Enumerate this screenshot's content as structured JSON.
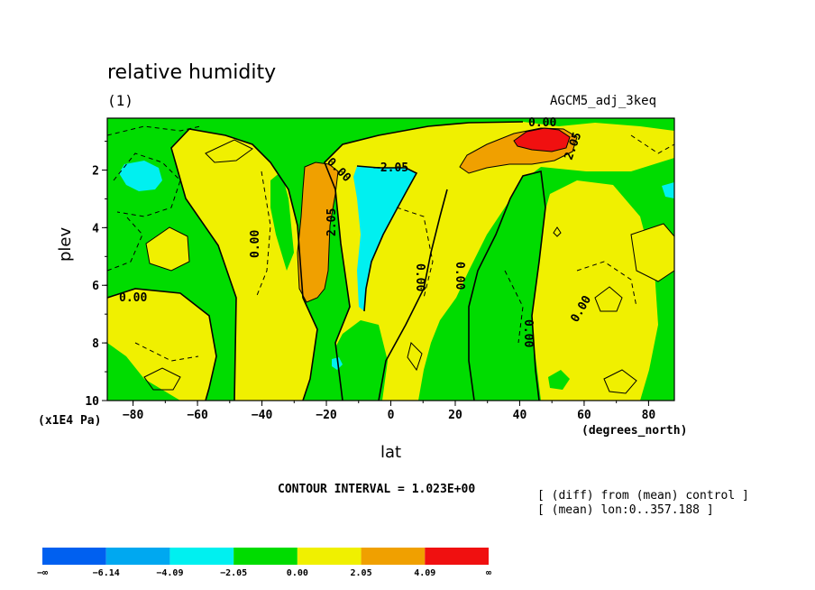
{
  "title": "relative humidity",
  "subtitle": "(1)",
  "model": "AGCM5_adj_3keq",
  "xlabel": "lat",
  "ylabel": "plev",
  "y_unit": "(x1E4 Pa)",
  "x_unit": "(degrees_north)",
  "contour_interval": "CONTOUR INTERVAL = 1.023E+00",
  "notes": [
    "[ (diff) from (mean) control ]",
    "[ (mean) lon:0..357.188 ]"
  ],
  "chart_data": {
    "type": "heatmap",
    "x_range": [
      -88,
      88
    ],
    "y_range": [
      0.2,
      10
    ],
    "y_inverted": true,
    "x_ticks": [
      -80,
      -60,
      -40,
      -20,
      0,
      20,
      40,
      60,
      80
    ],
    "x_tick_labels": [
      "−80",
      "−60",
      "−40",
      "−20",
      "0",
      "20",
      "40",
      "60",
      "80"
    ],
    "y_ticks": [
      2,
      4,
      6,
      8,
      10
    ],
    "y_tick_labels": [
      "2",
      "4",
      "6",
      "8",
      "10"
    ],
    "contour_labels": [
      "0.00",
      "−2.05",
      "2.05",
      "0.00",
      "0.00",
      "0.00",
      "0.00",
      "0.00",
      "0.00",
      "2.05",
      "0.00"
    ],
    "colorbar": {
      "levels": [
        "−∞",
        "−6.14",
        "−4.09",
        "−2.05",
        "0.00",
        "2.05",
        "4.09",
        "∞"
      ],
      "colors": [
        "#0060f0",
        "#00a8f0",
        "#00f0f0",
        "#00dc00",
        "#f0f000",
        "#f0a000",
        "#f01010"
      ]
    },
    "regions": [
      {
        "band": "2.05 to 4.09",
        "x": [
          -28,
          -18
        ],
        "y": [
          1.8,
          6.5
        ]
      },
      {
        "band": "2.05 to 4.09",
        "x": [
          30,
          58
        ],
        "y": [
          0.4,
          2.0
        ]
      },
      {
        "band": "4.09 to inf",
        "x": [
          40,
          57
        ],
        "y": [
          0.4,
          1.2
        ]
      },
      {
        "band": "-4.09 to -2.05",
        "x": [
          -9,
          7
        ],
        "y": [
          1.7,
          5.2
        ]
      },
      {
        "band": "-4.09 to -2.05",
        "x": [
          -86,
          -72
        ],
        "y": [
          1.5,
          2.7
        ]
      }
    ]
  }
}
